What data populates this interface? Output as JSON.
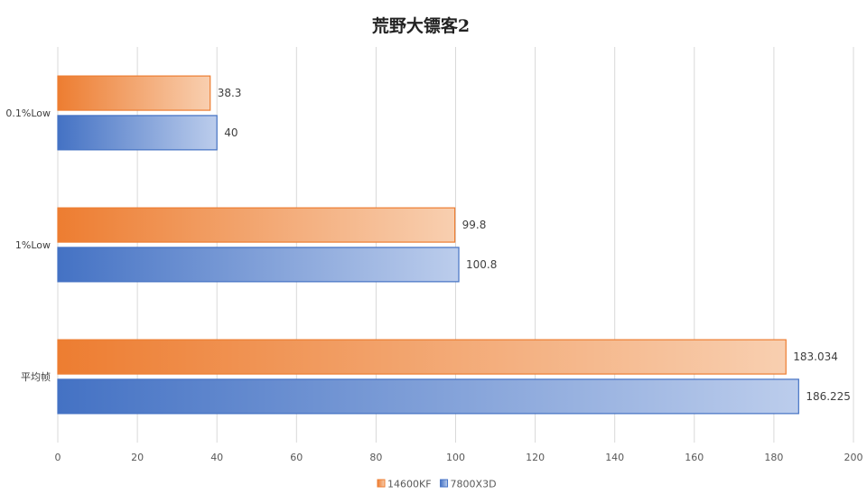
{
  "chart_data": {
    "type": "bar",
    "orientation": "horizontal",
    "title": "荒野大镖客2",
    "categories": [
      "0.1%Low",
      "1%Low",
      "平均帧"
    ],
    "series": [
      {
        "name": "14600KF",
        "values": [
          38.3,
          99.8,
          183.034
        ],
        "labels": [
          "38.3",
          "99.8",
          "183.034"
        ],
        "color": "#ED7D31",
        "color_light": "#F8CFB0"
      },
      {
        "name": "7800X3D",
        "values": [
          40,
          100.8,
          186.225
        ],
        "labels": [
          "40",
          "100.8",
          "186.225"
        ],
        "color": "#4472C4",
        "color_light": "#BCCDEC"
      }
    ],
    "xlim": [
      0,
      200
    ],
    "xticks": [
      0,
      20,
      40,
      60,
      80,
      100,
      120,
      140,
      160,
      180,
      200
    ],
    "xtick_labels": [
      "0",
      "20",
      "40",
      "60",
      "80",
      "100",
      "120",
      "140",
      "160",
      "180",
      "200"
    ],
    "grid": true,
    "legend_position": "bottom"
  }
}
